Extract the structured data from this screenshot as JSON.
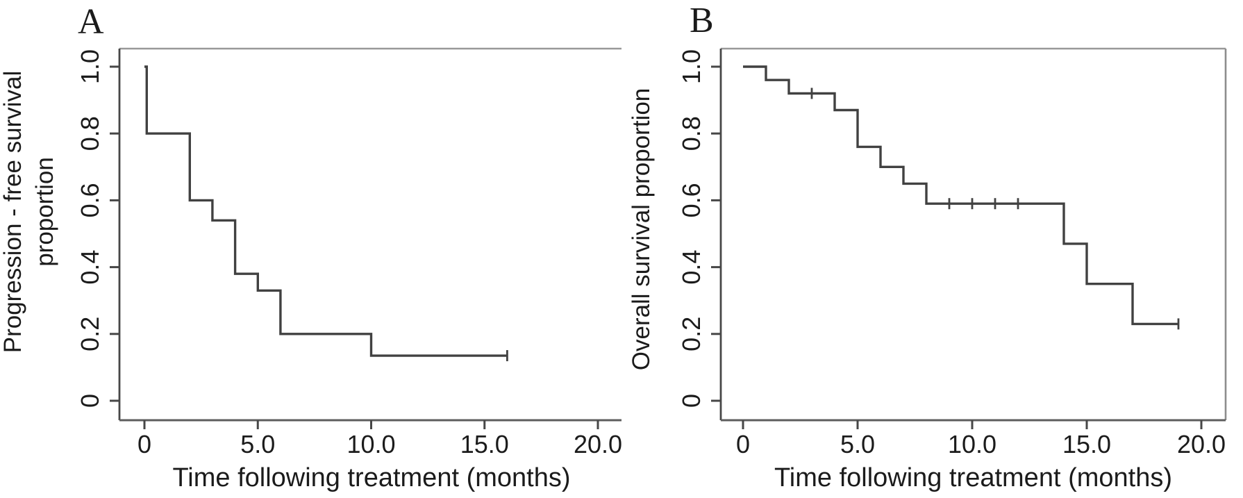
{
  "figure": {
    "background": "#ffffff",
    "curve_color": "#414141",
    "frame_color": "#8d8d8d",
    "axis_color": "#474747",
    "text_color": "#1b1b1b"
  },
  "chart_data": [
    {
      "type": "line",
      "subtype": "kaplan-meier-step",
      "panel_label": "A",
      "xlabel": "Time following treatment (months)",
      "ylabel_lines": [
        "Progression - free survival",
        "proportion"
      ],
      "xlim": [
        0,
        21
      ],
      "ylim": [
        0,
        1.0
      ],
      "xticks": [
        {
          "v": 0,
          "label": "0"
        },
        {
          "v": 5,
          "label": "5.0"
        },
        {
          "v": 10,
          "label": "10.0"
        },
        {
          "v": 15,
          "label": "15.0"
        },
        {
          "v": 20,
          "label": "20.0"
        }
      ],
      "yticks": [
        {
          "v": 1.0,
          "label": "1.0"
        },
        {
          "v": 0.8,
          "label": "0.8"
        },
        {
          "v": 0.6,
          "label": "0.6"
        },
        {
          "v": 0.4,
          "label": "0.4"
        },
        {
          "v": 0.2,
          "label": "0.2"
        },
        {
          "v": 0.0,
          "label": "0"
        }
      ],
      "steps": [
        [
          0,
          1.0
        ],
        [
          0.1,
          0.8
        ],
        [
          2,
          0.6
        ],
        [
          3,
          0.54
        ],
        [
          4,
          0.38
        ],
        [
          5,
          0.33
        ],
        [
          6,
          0.2
        ],
        [
          10,
          0.135
        ]
      ],
      "end_time": 16,
      "censor_marks": [
        [
          16,
          0.135
        ]
      ],
      "grid": false,
      "legend": "none"
    },
    {
      "type": "line",
      "subtype": "kaplan-meier-step",
      "panel_label": "B",
      "xlabel": "Time following treatment (months)",
      "ylabel_lines": [
        "Overall survival proportion"
      ],
      "xlim": [
        0,
        21
      ],
      "ylim": [
        0,
        1.0
      ],
      "xticks": [
        {
          "v": 0,
          "label": "0"
        },
        {
          "v": 5,
          "label": "5.0"
        },
        {
          "v": 10,
          "label": "10.0"
        },
        {
          "v": 15,
          "label": "15.0"
        },
        {
          "v": 20,
          "label": "20.0"
        }
      ],
      "yticks": [
        {
          "v": 1.0,
          "label": "1.0"
        },
        {
          "v": 0.8,
          "label": "0.8"
        },
        {
          "v": 0.6,
          "label": "0.6"
        },
        {
          "v": 0.4,
          "label": "0.4"
        },
        {
          "v": 0.2,
          "label": "0.2"
        },
        {
          "v": 0.0,
          "label": "0"
        }
      ],
      "steps": [
        [
          0,
          1.0
        ],
        [
          1,
          0.96
        ],
        [
          2,
          0.92
        ],
        [
          4,
          0.87
        ],
        [
          5,
          0.76
        ],
        [
          6,
          0.7
        ],
        [
          7,
          0.65
        ],
        [
          8,
          0.59
        ],
        [
          14,
          0.47
        ],
        [
          15,
          0.35
        ],
        [
          17,
          0.23
        ]
      ],
      "end_time": 19,
      "censor_marks": [
        [
          3,
          0.92
        ],
        [
          9,
          0.59
        ],
        [
          10,
          0.59
        ],
        [
          11,
          0.59
        ],
        [
          12,
          0.59
        ],
        [
          19,
          0.23
        ]
      ],
      "grid": false,
      "legend": "none"
    }
  ]
}
